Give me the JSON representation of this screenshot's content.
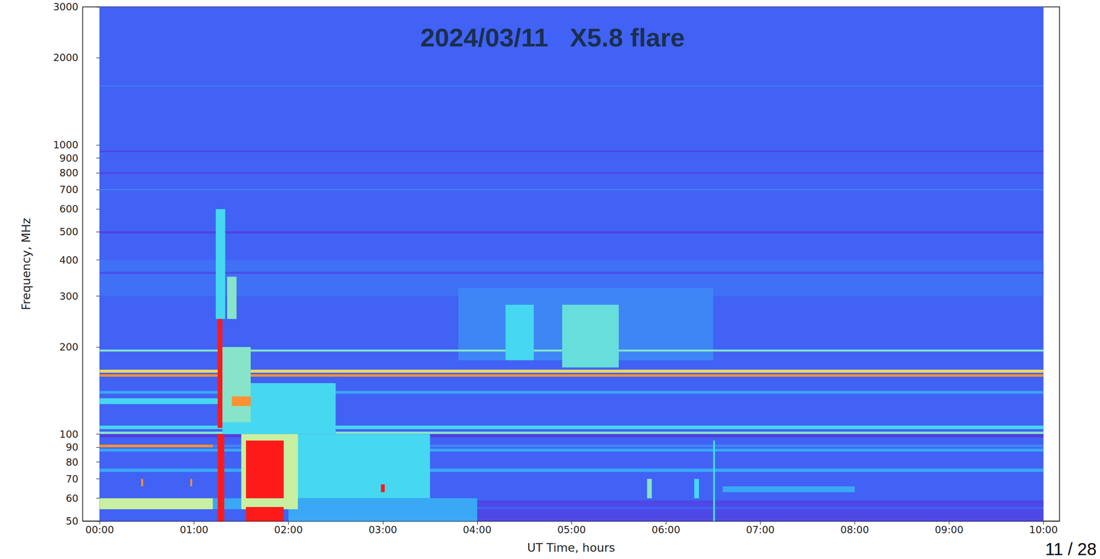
{
  "chart_data": {
    "type": "heatmap",
    "title": "2024/03/11   X5.8 flare",
    "x_label": "UT Time, hours",
    "y_label": "Frequency, MHz",
    "annotations": [
      "11 / 28"
    ],
    "log": "y",
    "xlim": [
      -0.18,
      10.17
    ],
    "ylim": [
      50,
      3000
    ],
    "xticks": [
      {
        "value": 0,
        "label": "00:00"
      },
      {
        "value": 1,
        "label": "01:00"
      },
      {
        "value": 2,
        "label": "02:00"
      },
      {
        "value": 3,
        "label": "03:00"
      },
      {
        "value": 4,
        "label": "04:00"
      },
      {
        "value": 5,
        "label": "05:00"
      },
      {
        "value": 6,
        "label": "06:00"
      },
      {
        "value": 7,
        "label": "07:00"
      },
      {
        "value": 8,
        "label": "08:00"
      },
      {
        "value": 9,
        "label": "09:00"
      },
      {
        "value": 10,
        "label": "10:00"
      }
    ],
    "yticks": [
      50,
      60,
      70,
      80,
      90,
      100,
      200,
      300,
      400,
      500,
      600,
      700,
      800,
      900,
      1000,
      2000,
      3000
    ],
    "zlim": [
      0,
      10
    ],
    "cells": [
      [
        0,
        10,
        50,
        3000,
        2
      ],
      [
        0,
        10,
        300,
        400,
        2.4
      ],
      [
        3.8,
        6.5,
        180,
        320,
        3
      ],
      [
        0,
        10,
        1590,
        1610,
        2.6
      ],
      [
        0,
        10,
        945,
        955,
        0.8
      ],
      [
        0,
        10,
        792,
        805,
        1
      ],
      [
        0,
        10,
        697,
        703,
        3
      ],
      [
        0,
        10,
        494,
        503,
        0.8
      ],
      [
        0,
        10,
        358,
        364,
        1.2
      ],
      [
        0,
        10,
        193,
        196,
        6
      ],
      [
        0,
        10,
        163,
        167,
        8
      ],
      [
        0,
        10,
        158,
        161,
        9
      ],
      [
        0,
        10,
        138,
        141,
        4
      ],
      [
        0,
        1.3,
        127,
        133,
        5
      ],
      [
        0,
        10,
        104,
        107,
        5
      ],
      [
        0,
        10,
        100,
        102,
        6
      ],
      [
        0,
        10,
        97.5,
        100,
        0.5
      ],
      [
        0,
        1.2,
        90,
        92,
        9
      ],
      [
        1.2,
        10,
        90,
        92,
        3
      ],
      [
        0,
        10,
        87,
        89,
        4
      ],
      [
        0,
        10,
        74,
        76,
        4
      ],
      [
        0,
        1.2,
        55,
        60,
        7
      ],
      [
        1.2,
        4,
        55,
        60,
        4
      ],
      [
        4,
        10,
        56,
        59,
        1
      ],
      [
        3,
        10,
        50,
        55,
        1
      ],
      [
        0.44,
        0.46,
        66,
        70,
        9
      ],
      [
        0.96,
        0.98,
        66,
        70,
        9
      ],
      [
        1.23,
        1.33,
        250,
        600,
        5
      ],
      [
        1.35,
        1.45,
        250,
        350,
        6
      ],
      [
        1.3,
        2.5,
        100,
        150,
        5
      ],
      [
        1.3,
        1.6,
        110,
        200,
        6
      ],
      [
        1.4,
        1.6,
        125,
        135,
        9
      ],
      [
        2.0,
        3.5,
        60,
        100,
        5
      ],
      [
        2.0,
        4.0,
        50,
        60,
        4
      ],
      [
        1.5,
        2.1,
        55,
        100,
        7
      ],
      [
        1.55,
        1.95,
        60,
        95,
        10
      ],
      [
        1.55,
        1.95,
        50,
        56,
        10
      ],
      [
        1.25,
        1.3,
        105,
        250,
        10
      ],
      [
        1.25,
        1.32,
        50,
        100,
        10
      ],
      [
        2.98,
        3.02,
        63,
        67,
        10
      ],
      [
        4.3,
        4.6,
        180,
        280,
        5
      ],
      [
        4.9,
        5.5,
        170,
        280,
        5.5
      ],
      [
        5.8,
        5.85,
        60,
        70,
        6
      ],
      [
        6.3,
        6.35,
        60,
        70,
        5
      ],
      [
        6.5,
        6.52,
        50,
        95,
        5
      ],
      [
        6.6,
        8.0,
        63,
        66,
        4
      ]
    ]
  }
}
